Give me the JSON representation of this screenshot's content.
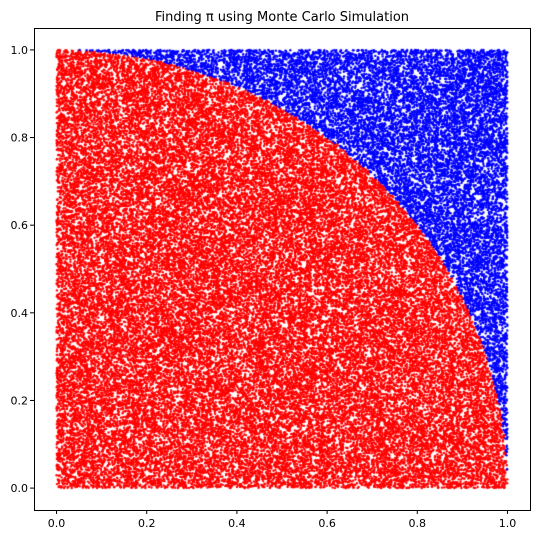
{
  "chart_data": {
    "type": "scatter",
    "title": "Finding π using Monte Carlo Simulation",
    "xlabel": "",
    "ylabel": "",
    "xlim": [
      -0.05,
      1.05
    ],
    "ylim": [
      -0.05,
      1.05
    ],
    "x_ticks": [
      0.0,
      0.2,
      0.4,
      0.6,
      0.8,
      1.0
    ],
    "y_ticks": [
      0.0,
      0.2,
      0.4,
      0.6,
      0.8,
      1.0
    ],
    "x_tick_labels": [
      "0.0",
      "0.2",
      "0.4",
      "0.6",
      "0.8",
      "1.0"
    ],
    "y_tick_labels": [
      "0.0",
      "0.2",
      "0.4",
      "0.6",
      "0.8",
      "1.0"
    ],
    "grid": false,
    "legend": "none",
    "series": [
      {
        "color": "#ff0000",
        "region": "inside",
        "condition": "x^2 + y^2 <= 1"
      },
      {
        "color": "#0000ff",
        "region": "outside",
        "condition": "x^2 + y^2 > 1"
      }
    ],
    "sampling": {
      "distribution": "uniform",
      "x_range": [
        0,
        1
      ],
      "y_range": [
        0,
        1
      ]
    }
  }
}
